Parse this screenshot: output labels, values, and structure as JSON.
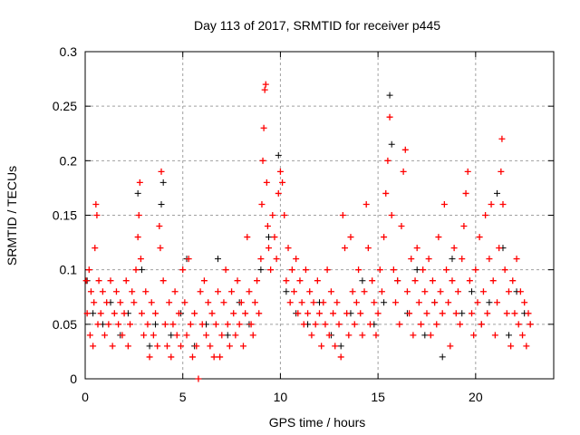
{
  "chart_data": {
    "type": "scatter",
    "title": "Day 113 of 2017, SRMTID for receiver p445",
    "xlabel": "GPS time / hours",
    "ylabel": "SRMTID / TECUs",
    "xlim": [
      0,
      24
    ],
    "ylim": [
      0,
      0.3
    ],
    "grid": true,
    "legend": "none",
    "xticks": [
      0,
      5,
      10,
      15,
      20
    ],
    "xtick_labels": [
      "0",
      "5",
      "10",
      "15",
      "20"
    ],
    "yticks": [
      0,
      0.05,
      0.1,
      0.15,
      0.2,
      0.25,
      0.3
    ],
    "ytick_labels": [
      "0",
      "0.05",
      "0.1",
      "0.15",
      "0.2",
      "0.25",
      "0.3"
    ],
    "series": [
      {
        "name": "black",
        "color": "#000000",
        "points": [
          [
            0.1,
            0.09
          ],
          [
            0.4,
            0.06
          ],
          [
            0.9,
            0.05
          ],
          [
            1.3,
            0.07
          ],
          [
            1.8,
            0.04
          ],
          [
            2.2,
            0.06
          ],
          [
            2.7,
            0.17
          ],
          [
            2.9,
            0.1
          ],
          [
            3.3,
            0.03
          ],
          [
            3.6,
            0.05
          ],
          [
            3.9,
            0.16
          ],
          [
            4.0,
            0.18
          ],
          [
            4.4,
            0.04
          ],
          [
            4.9,
            0.06
          ],
          [
            5.2,
            0.11
          ],
          [
            5.6,
            0.03
          ],
          [
            6.2,
            0.05
          ],
          [
            6.8,
            0.11
          ],
          [
            7.3,
            0.04
          ],
          [
            7.9,
            0.07
          ],
          [
            8.4,
            0.05
          ],
          [
            9.0,
            0.1
          ],
          [
            9.4,
            0.13
          ],
          [
            9.9,
            0.205
          ],
          [
            10.3,
            0.08
          ],
          [
            10.8,
            0.06
          ],
          [
            11.4,
            0.05
          ],
          [
            12.0,
            0.07
          ],
          [
            12.6,
            0.04
          ],
          [
            13.1,
            0.03
          ],
          [
            13.6,
            0.06
          ],
          [
            14.2,
            0.09
          ],
          [
            14.8,
            0.05
          ],
          [
            15.3,
            0.07
          ],
          [
            15.6,
            0.26
          ],
          [
            15.7,
            0.215
          ],
          [
            16.0,
            0.09
          ],
          [
            16.5,
            0.06
          ],
          [
            17.0,
            0.1
          ],
          [
            17.4,
            0.04
          ],
          [
            17.9,
            0.07
          ],
          [
            18.3,
            0.02
          ],
          [
            18.8,
            0.11
          ],
          [
            19.3,
            0.06
          ],
          [
            19.8,
            0.08
          ],
          [
            20.3,
            0.05
          ],
          [
            20.7,
            0.07
          ],
          [
            21.1,
            0.17
          ],
          [
            21.4,
            0.12
          ],
          [
            21.7,
            0.04
          ],
          [
            22.1,
            0.08
          ],
          [
            22.5,
            0.06
          ],
          [
            22.8,
            0.05
          ]
        ]
      },
      {
        "name": "red",
        "color": "#ff0000",
        "points": [
          [
            0.05,
            0.09
          ],
          [
            0.1,
            0.06
          ],
          [
            0.2,
            0.1
          ],
          [
            0.25,
            0.04
          ],
          [
            0.3,
            0.08
          ],
          [
            0.4,
            0.03
          ],
          [
            0.45,
            0.07
          ],
          [
            0.5,
            0.12
          ],
          [
            0.55,
            0.16
          ],
          [
            0.6,
            0.15
          ],
          [
            0.65,
            0.05
          ],
          [
            0.7,
            0.09
          ],
          [
            0.8,
            0.06
          ],
          [
            0.9,
            0.08
          ],
          [
            1.0,
            0.04
          ],
          [
            1.1,
            0.07
          ],
          [
            1.2,
            0.05
          ],
          [
            1.3,
            0.09
          ],
          [
            1.4,
            0.03
          ],
          [
            1.5,
            0.06
          ],
          [
            1.6,
            0.08
          ],
          [
            1.7,
            0.05
          ],
          [
            1.8,
            0.07
          ],
          [
            1.9,
            0.04
          ],
          [
            2.0,
            0.06
          ],
          [
            2.1,
            0.09
          ],
          [
            2.2,
            0.03
          ],
          [
            2.3,
            0.05
          ],
          [
            2.4,
            0.08
          ],
          [
            2.5,
            0.07
          ],
          [
            2.6,
            0.1
          ],
          [
            2.7,
            0.13
          ],
          [
            2.75,
            0.15
          ],
          [
            2.8,
            0.18
          ],
          [
            2.85,
            0.11
          ],
          [
            2.9,
            0.06
          ],
          [
            3.0,
            0.04
          ],
          [
            3.1,
            0.08
          ],
          [
            3.2,
            0.05
          ],
          [
            3.3,
            0.02
          ],
          [
            3.4,
            0.07
          ],
          [
            3.5,
            0.04
          ],
          [
            3.6,
            0.06
          ],
          [
            3.7,
            0.03
          ],
          [
            3.8,
            0.14
          ],
          [
            3.85,
            0.12
          ],
          [
            3.9,
            0.19
          ],
          [
            4.0,
            0.09
          ],
          [
            4.1,
            0.05
          ],
          [
            4.2,
            0.03
          ],
          [
            4.3,
            0.07
          ],
          [
            4.4,
            0.02
          ],
          [
            4.5,
            0.05
          ],
          [
            4.6,
            0.08
          ],
          [
            4.7,
            0.04
          ],
          [
            4.8,
            0.06
          ],
          [
            4.9,
            0.03
          ],
          [
            5.0,
            0.1
          ],
          [
            5.1,
            0.07
          ],
          [
            5.2,
            0.04
          ],
          [
            5.3,
            0.11
          ],
          [
            5.4,
            0.05
          ],
          [
            5.5,
            0.02
          ],
          [
            5.6,
            0.06
          ],
          [
            5.7,
            0.03
          ],
          [
            5.8,
            0.0
          ],
          [
            5.9,
            0.08
          ],
          [
            6.0,
            0.05
          ],
          [
            6.1,
            0.09
          ],
          [
            6.2,
            0.04
          ],
          [
            6.3,
            0.07
          ],
          [
            6.4,
            0.03
          ],
          [
            6.5,
            0.06
          ],
          [
            6.6,
            0.02
          ],
          [
            6.7,
            0.05
          ],
          [
            6.8,
            0.08
          ],
          [
            6.9,
            0.02
          ],
          [
            7.0,
            0.04
          ],
          [
            7.1,
            0.07
          ],
          [
            7.2,
            0.1
          ],
          [
            7.3,
            0.05
          ],
          [
            7.4,
            0.03
          ],
          [
            7.5,
            0.08
          ],
          [
            7.6,
            0.06
          ],
          [
            7.7,
            0.04
          ],
          [
            7.8,
            0.09
          ],
          [
            7.9,
            0.05
          ],
          [
            8.0,
            0.07
          ],
          [
            8.1,
            0.03
          ],
          [
            8.2,
            0.06
          ],
          [
            8.3,
            0.13
          ],
          [
            8.4,
            0.08
          ],
          [
            8.5,
            0.05
          ],
          [
            8.6,
            0.04
          ],
          [
            8.7,
            0.07
          ],
          [
            8.8,
            0.09
          ],
          [
            8.9,
            0.06
          ],
          [
            9.0,
            0.11
          ],
          [
            9.05,
            0.16
          ],
          [
            9.1,
            0.2
          ],
          [
            9.15,
            0.23
          ],
          [
            9.2,
            0.265
          ],
          [
            9.25,
            0.27
          ],
          [
            9.3,
            0.18
          ],
          [
            9.35,
            0.14
          ],
          [
            9.4,
            0.12
          ],
          [
            9.5,
            0.1
          ],
          [
            9.6,
            0.15
          ],
          [
            9.7,
            0.13
          ],
          [
            9.8,
            0.11
          ],
          [
            9.9,
            0.17
          ],
          [
            10.0,
            0.19
          ],
          [
            10.1,
            0.18
          ],
          [
            10.2,
            0.15
          ],
          [
            10.3,
            0.09
          ],
          [
            10.4,
            0.12
          ],
          [
            10.5,
            0.07
          ],
          [
            10.6,
            0.1
          ],
          [
            10.7,
            0.08
          ],
          [
            10.8,
            0.11
          ],
          [
            10.9,
            0.06
          ],
          [
            11.0,
            0.09
          ],
          [
            11.1,
            0.07
          ],
          [
            11.2,
            0.05
          ],
          [
            11.3,
            0.1
          ],
          [
            11.4,
            0.06
          ],
          [
            11.5,
            0.08
          ],
          [
            11.6,
            0.04
          ],
          [
            11.7,
            0.07
          ],
          [
            11.8,
            0.05
          ],
          [
            11.9,
            0.09
          ],
          [
            12.0,
            0.06
          ],
          [
            12.1,
            0.03
          ],
          [
            12.2,
            0.07
          ],
          [
            12.3,
            0.05
          ],
          [
            12.4,
            0.1
          ],
          [
            12.5,
            0.04
          ],
          [
            12.6,
            0.08
          ],
          [
            12.7,
            0.06
          ],
          [
            12.8,
            0.03
          ],
          [
            12.9,
            0.07
          ],
          [
            13.0,
            0.05
          ],
          [
            13.1,
            0.02
          ],
          [
            13.2,
            0.15
          ],
          [
            13.3,
            0.12
          ],
          [
            13.4,
            0.06
          ],
          [
            13.5,
            0.04
          ],
          [
            13.6,
            0.13
          ],
          [
            13.7,
            0.08
          ],
          [
            13.8,
            0.05
          ],
          [
            13.9,
            0.07
          ],
          [
            14.0,
            0.1
          ],
          [
            14.1,
            0.06
          ],
          [
            14.2,
            0.04
          ],
          [
            14.3,
            0.08
          ],
          [
            14.4,
            0.16
          ],
          [
            14.5,
            0.12
          ],
          [
            14.6,
            0.05
          ],
          [
            14.7,
            0.09
          ],
          [
            14.8,
            0.07
          ],
          [
            14.9,
            0.04
          ],
          [
            15.0,
            0.06
          ],
          [
            15.1,
            0.1
          ],
          [
            15.2,
            0.08
          ],
          [
            15.3,
            0.13
          ],
          [
            15.4,
            0.17
          ],
          [
            15.5,
            0.2
          ],
          [
            15.6,
            0.24
          ],
          [
            15.7,
            0.15
          ],
          [
            15.8,
            0.1
          ],
          [
            15.9,
            0.07
          ],
          [
            16.0,
            0.09
          ],
          [
            16.1,
            0.05
          ],
          [
            16.2,
            0.14
          ],
          [
            16.3,
            0.19
          ],
          [
            16.4,
            0.21
          ],
          [
            16.5,
            0.08
          ],
          [
            16.6,
            0.06
          ],
          [
            16.7,
            0.11
          ],
          [
            16.8,
            0.04
          ],
          [
            16.9,
            0.09
          ],
          [
            17.0,
            0.12
          ],
          [
            17.1,
            0.07
          ],
          [
            17.2,
            0.05
          ],
          [
            17.3,
            0.1
          ],
          [
            17.4,
            0.08
          ],
          [
            17.5,
            0.06
          ],
          [
            17.6,
            0.11
          ],
          [
            17.7,
            0.04
          ],
          [
            17.8,
            0.09
          ],
          [
            17.9,
            0.07
          ],
          [
            18.0,
            0.05
          ],
          [
            18.1,
            0.13
          ],
          [
            18.2,
            0.08
          ],
          [
            18.3,
            0.06
          ],
          [
            18.4,
            0.16
          ],
          [
            18.5,
            0.1
          ],
          [
            18.6,
            0.07
          ],
          [
            18.7,
            0.03
          ],
          [
            18.8,
            0.09
          ],
          [
            18.9,
            0.12
          ],
          [
            19.0,
            0.06
          ],
          [
            19.1,
            0.08
          ],
          [
            19.2,
            0.05
          ],
          [
            19.3,
            0.11
          ],
          [
            19.4,
            0.14
          ],
          [
            19.5,
            0.17
          ],
          [
            19.6,
            0.19
          ],
          [
            19.7,
            0.09
          ],
          [
            19.8,
            0.06
          ],
          [
            19.9,
            0.04
          ],
          [
            20.0,
            0.1
          ],
          [
            20.1,
            0.07
          ],
          [
            20.2,
            0.13
          ],
          [
            20.3,
            0.05
          ],
          [
            20.4,
            0.08
          ],
          [
            20.5,
            0.15
          ],
          [
            20.6,
            0.06
          ],
          [
            20.7,
            0.11
          ],
          [
            20.8,
            0.16
          ],
          [
            20.9,
            0.09
          ],
          [
            21.0,
            0.04
          ],
          [
            21.1,
            0.07
          ],
          [
            21.2,
            0.12
          ],
          [
            21.3,
            0.19
          ],
          [
            21.35,
            0.22
          ],
          [
            21.4,
            0.16
          ],
          [
            21.5,
            0.1
          ],
          [
            21.6,
            0.06
          ],
          [
            21.7,
            0.08
          ],
          [
            21.8,
            0.03
          ],
          [
            21.9,
            0.09
          ],
          [
            22.0,
            0.06
          ],
          [
            22.1,
            0.11
          ],
          [
            22.2,
            0.05
          ],
          [
            22.3,
            0.08
          ],
          [
            22.4,
            0.04
          ],
          [
            22.5,
            0.07
          ],
          [
            22.6,
            0.03
          ],
          [
            22.7,
            0.06
          ],
          [
            22.8,
            0.05
          ]
        ]
      }
    ]
  }
}
